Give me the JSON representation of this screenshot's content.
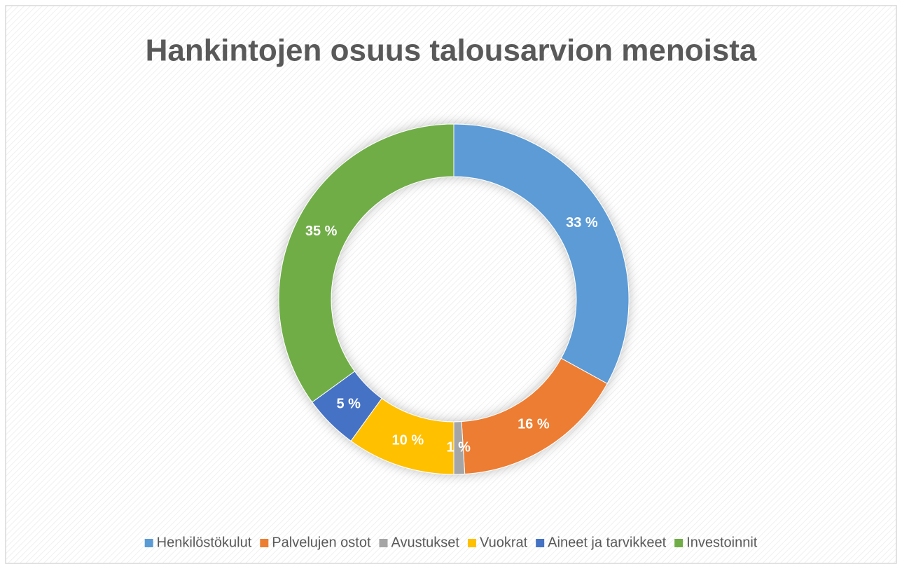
{
  "chart_data": {
    "type": "donut",
    "title": "Hankintojen osuus talousarvion menoista",
    "categories": [
      "Henkilöstökulut",
      "Palvelujen ostot",
      "Avustukset",
      "Vuokrat",
      "Aineet ja tarvikkeet",
      "Investoinnit"
    ],
    "values": [
      33,
      16,
      1,
      10,
      5,
      35
    ],
    "value_labels": [
      "33 %",
      "16 %",
      "1 %",
      "10 %",
      "5 %",
      "35 %"
    ],
    "colors": [
      "#5b9bd5",
      "#ed7d31",
      "#a5a5a5",
      "#ffc000",
      "#4472c4",
      "#70ad47"
    ],
    "legend": "bottom"
  }
}
